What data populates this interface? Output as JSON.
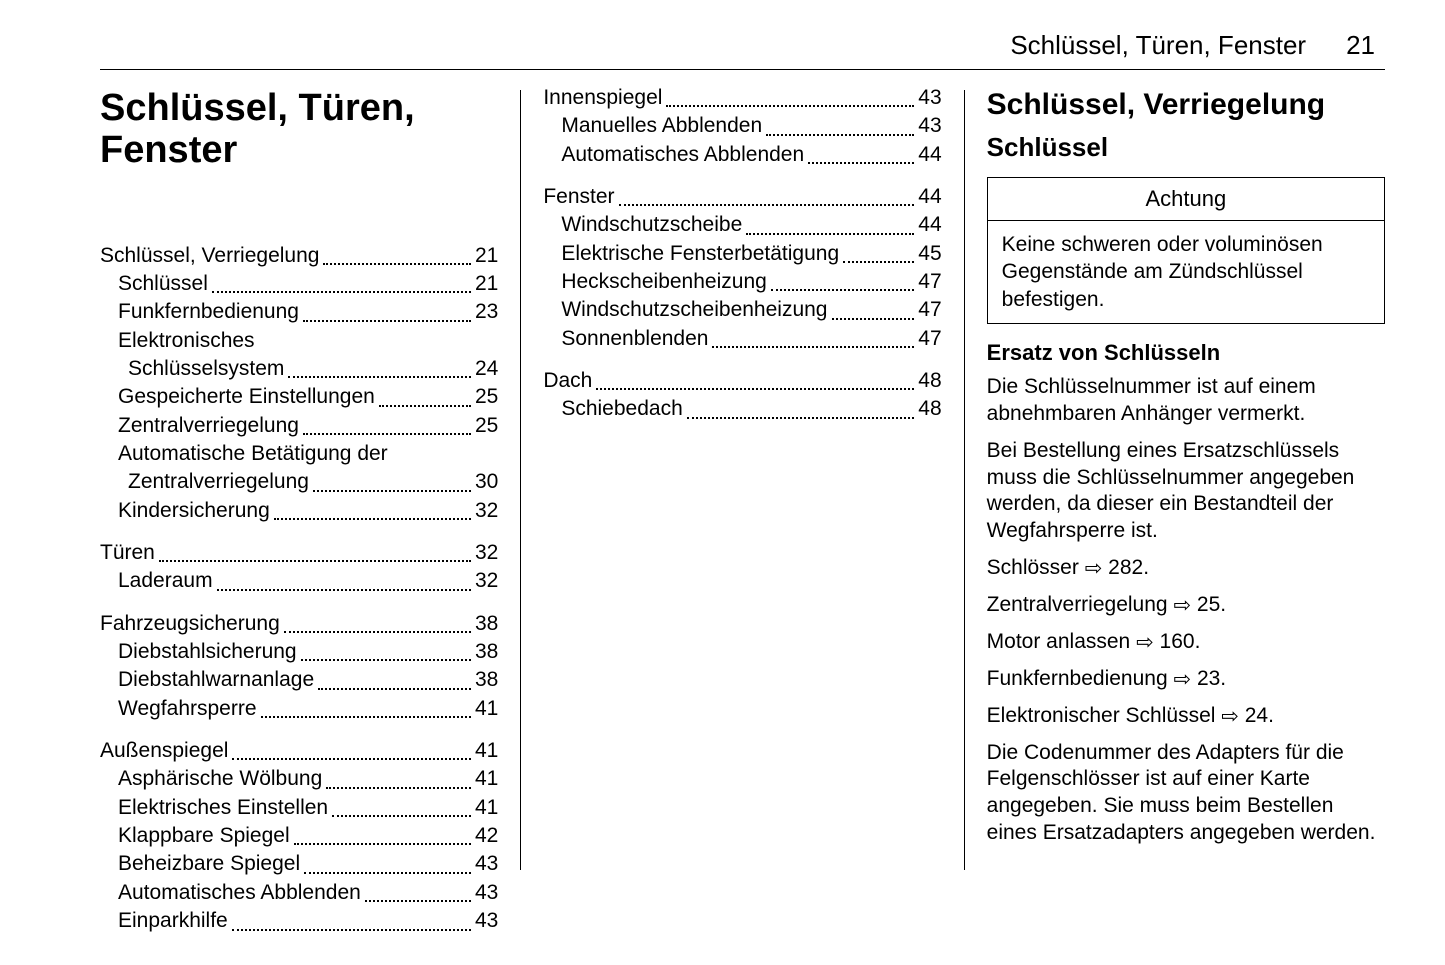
{
  "header": {
    "title": "Schlüssel, Türen, Fenster",
    "page": "21"
  },
  "chapter_title": "Schlüssel, Türen,\nFenster",
  "toc_col1": [
    {
      "group": [
        {
          "label": "Schlüssel, Verriegelung",
          "page": "21",
          "indent": 0
        },
        {
          "label": "Schlüssel",
          "page": "21",
          "indent": 1
        },
        {
          "label": "Funkfernbedienung",
          "page": "23",
          "indent": 1
        },
        {
          "label": "Elektronisches",
          "label2": "Schlüsselsystem",
          "page": "24",
          "indent": 1,
          "wrap": true
        },
        {
          "label": "Gespeicherte Einstellungen",
          "page": "25",
          "indent": 1
        },
        {
          "label": "Zentralverriegelung",
          "page": "25",
          "indent": 1
        },
        {
          "label": "Automatische Betätigung der",
          "label2": "Zentralverriegelung",
          "page": "30",
          "indent": 1,
          "wrap": true
        },
        {
          "label": "Kindersicherung",
          "page": "32",
          "indent": 1
        }
      ]
    },
    {
      "group": [
        {
          "label": "Türen",
          "page": "32",
          "indent": 0
        },
        {
          "label": "Laderaum",
          "page": "32",
          "indent": 1
        }
      ]
    },
    {
      "group": [
        {
          "label": "Fahrzeugsicherung",
          "page": "38",
          "indent": 0
        },
        {
          "label": "Diebstahlsicherung",
          "page": "38",
          "indent": 1
        },
        {
          "label": "Diebstahlwarnanlage",
          "page": "38",
          "indent": 1
        },
        {
          "label": "Wegfahrsperre",
          "page": "41",
          "indent": 1
        }
      ]
    },
    {
      "group": [
        {
          "label": "Außenspiegel",
          "page": "41",
          "indent": 0
        },
        {
          "label": "Asphärische Wölbung",
          "page": "41",
          "indent": 1
        },
        {
          "label": "Elektrisches Einstellen",
          "page": "41",
          "indent": 1
        },
        {
          "label": "Klappbare Spiegel",
          "page": "42",
          "indent": 1
        },
        {
          "label": "Beheizbare Spiegel",
          "page": "43",
          "indent": 1
        },
        {
          "label": "Automatisches Abblenden",
          "page": "43",
          "indent": 1
        },
        {
          "label": "Einparkhilfe",
          "page": "43",
          "indent": 1
        }
      ]
    }
  ],
  "toc_col2": [
    {
      "group": [
        {
          "label": "Innenspiegel",
          "page": "43",
          "indent": 0
        },
        {
          "label": "Manuelles Abblenden",
          "page": "43",
          "indent": 1
        },
        {
          "label": "Automatisches Abblenden",
          "page": "44",
          "indent": 1
        }
      ]
    },
    {
      "group": [
        {
          "label": "Fenster",
          "page": "44",
          "indent": 0
        },
        {
          "label": "Windschutzscheibe",
          "page": "44",
          "indent": 1
        },
        {
          "label": "Elektrische Fensterbetätigung",
          "page": "45",
          "indent": 1
        },
        {
          "label": "Heckscheibenheizung",
          "page": "47",
          "indent": 1
        },
        {
          "label": "Windschutzscheibenheizung",
          "page": "47",
          "indent": 1
        },
        {
          "label": "Sonnenblenden",
          "page": "47",
          "indent": 1
        }
      ]
    },
    {
      "group": [
        {
          "label": "Dach",
          "page": "48",
          "indent": 0
        },
        {
          "label": "Schiebedach",
          "page": "48",
          "indent": 1
        }
      ]
    }
  ],
  "content": {
    "h1": "Schlüssel, Verriegelung",
    "h2": "Schlüssel",
    "warning_title": "Achtung",
    "warning_body": "Keine schweren oder voluminö­sen Gegenstände am Zünd­schlüssel befestigen.",
    "sub_heading": "Ersatz von Schlüsseln",
    "p1": "Die Schlüsselnummer ist auf einem abnehmbaren Anhänger vermerkt.",
    "p2": "Bei Bestellung eines Ersatzschlüs­sels muss die Schlüsselnummer angegeben werden, da dieser ein Bestandteil der Wegfahrsperre ist.",
    "refs": [
      {
        "text": "Schlösser",
        "page": "282"
      },
      {
        "text": "Zentralverriegelung",
        "page": "25"
      },
      {
        "text": "Motor anlassen",
        "page": "160"
      },
      {
        "text": "Funkfernbedienung",
        "page": "23"
      },
      {
        "text": "Elektronischer Schlüssel",
        "page": "24"
      }
    ],
    "p3": "Die Codenummer des Adapters für die Felgenschlösser ist auf einer Karte angegeben. Sie muss beim Bestellen eines Ersatzadapters ange­geben werden."
  },
  "style": {
    "text_color": "#000000",
    "bg_color": "#ffffff",
    "font_family": "Arial, Helvetica, sans-serif",
    "arrow_glyph": "⇨"
  }
}
